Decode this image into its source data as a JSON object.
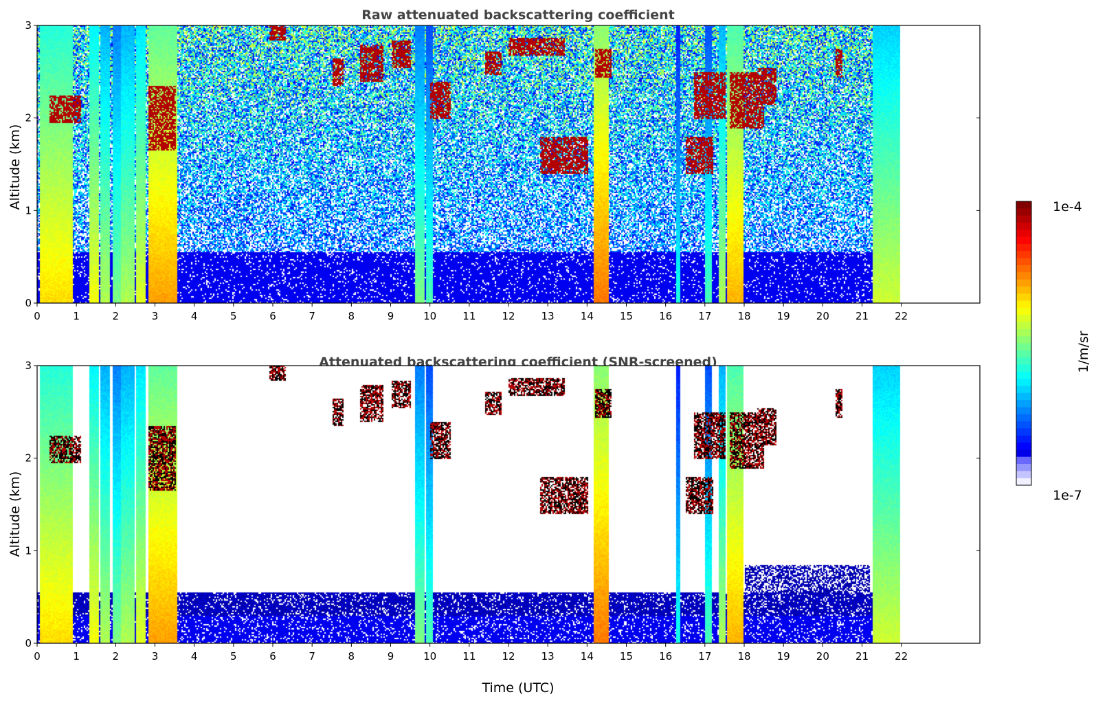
{
  "figure": {
    "xlabel": "Time (UTC)",
    "colorbar": {
      "label": "1/m/sr",
      "max_label": "1e-4",
      "min_label": "1e-7",
      "scale": "log"
    }
  },
  "chart_data": [
    {
      "type": "heatmap",
      "title": "Raw attenuated backscattering coefficient",
      "xlabel": "",
      "ylabel": "Altitude (km)",
      "xlim": [
        0,
        24
      ],
      "ylim": [
        0,
        3
      ],
      "xticks": [
        0,
        1,
        2,
        3,
        4,
        5,
        6,
        7,
        8,
        9,
        10,
        11,
        12,
        13,
        14,
        15,
        16,
        17,
        18,
        19,
        20,
        21,
        22
      ],
      "yticks": [
        0,
        1,
        2,
        3
      ],
      "data_x_range": [
        0,
        21.95
      ],
      "colormap": "jet",
      "clouds_visible": true,
      "screened": false
    },
    {
      "type": "heatmap",
      "title": "Attenuated backscattering coefficient (SNR-screened)",
      "xlabel": "Time (UTC)",
      "ylabel": "Altitude (km)",
      "xlim": [
        0,
        24
      ],
      "ylim": [
        0,
        3
      ],
      "xticks": [
        0,
        1,
        2,
        3,
        4,
        5,
        6,
        7,
        8,
        9,
        10,
        11,
        12,
        13,
        14,
        15,
        16,
        17,
        18,
        19,
        20,
        21,
        22
      ],
      "yticks": [
        0,
        1,
        2,
        3
      ],
      "data_x_range": [
        0,
        21.95
      ],
      "colormap": "jet",
      "clouds_visible": true,
      "screened": true
    }
  ]
}
